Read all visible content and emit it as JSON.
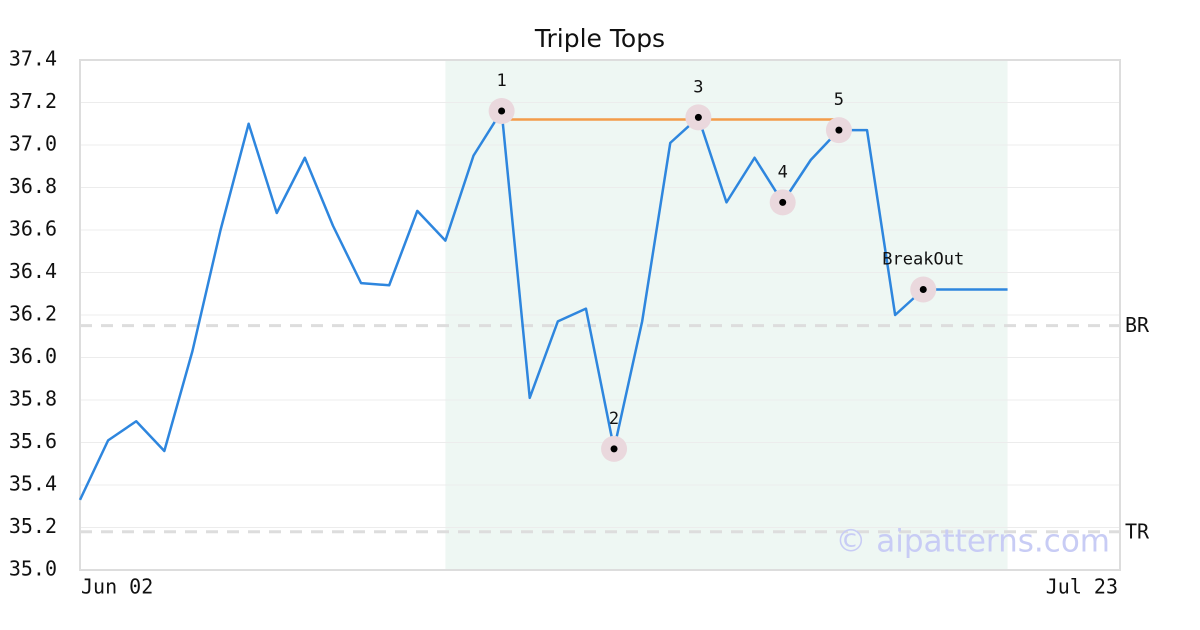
{
  "chart_data": {
    "type": "line",
    "title": "Triple Tops",
    "x": [
      0,
      1,
      2,
      3,
      4,
      5,
      6,
      7,
      8,
      9,
      10,
      11,
      12,
      13,
      14,
      15,
      16,
      17,
      18,
      19,
      20,
      21,
      22,
      23,
      24,
      25,
      26,
      27,
      28,
      29,
      30,
      31,
      32,
      33
    ],
    "series": [
      {
        "color": "#2e86de",
        "values": [
          35.33,
          35.61,
          35.7,
          35.56,
          36.03,
          36.6,
          37.1,
          36.68,
          36.94,
          36.62,
          36.35,
          36.34,
          36.69,
          36.55,
          36.95,
          37.16,
          35.81,
          36.17,
          36.23,
          35.57,
          36.17,
          37.01,
          37.13,
          36.73,
          36.94,
          36.73,
          36.93,
          37.07,
          37.07,
          36.2,
          36.32,
          36.32,
          36.32,
          36.32
        ]
      }
    ],
    "xlim": [
      0,
      37
    ],
    "xticks": [
      {
        "value": 0,
        "label": "Jun 02"
      },
      {
        "value": 37,
        "label": "Jul 23"
      }
    ],
    "ylim": [
      35.0,
      37.4
    ],
    "yticks": [
      {
        "value": 35.0,
        "label": "35.0"
      },
      35.2,
      35.4,
      35.6,
      35.8,
      {
        "value": 36.0,
        "label": "36.0"
      },
      36.2,
      36.4,
      36.6,
      36.8,
      {
        "value": 37.0,
        "label": "37.0"
      },
      37.2,
      37.4
    ],
    "grid": true,
    "pattern_region": {
      "x": [
        13,
        33
      ],
      "color": "#eef7f3"
    },
    "pattern_points": [
      {
        "label": "1",
        "x": 15,
        "y": 37.16
      },
      {
        "label": "2",
        "x": 19,
        "y": 35.57
      },
      {
        "label": "3",
        "x": 22,
        "y": 37.13
      },
      {
        "label": "4",
        "x": 25,
        "y": 36.73
      },
      {
        "label": "5",
        "x": 27,
        "y": 37.07
      },
      {
        "label": "BreakOut",
        "x": 30,
        "y": 36.32
      }
    ],
    "resistance_line": {
      "x": [
        15,
        27
      ],
      "value": 37.12,
      "color": "#f39c4a"
    },
    "hlines": [
      {
        "label": "BR",
        "value": 36.15
      },
      {
        "label": "TR",
        "value": 35.18
      }
    ],
    "watermark": "© aipatterns.com"
  }
}
